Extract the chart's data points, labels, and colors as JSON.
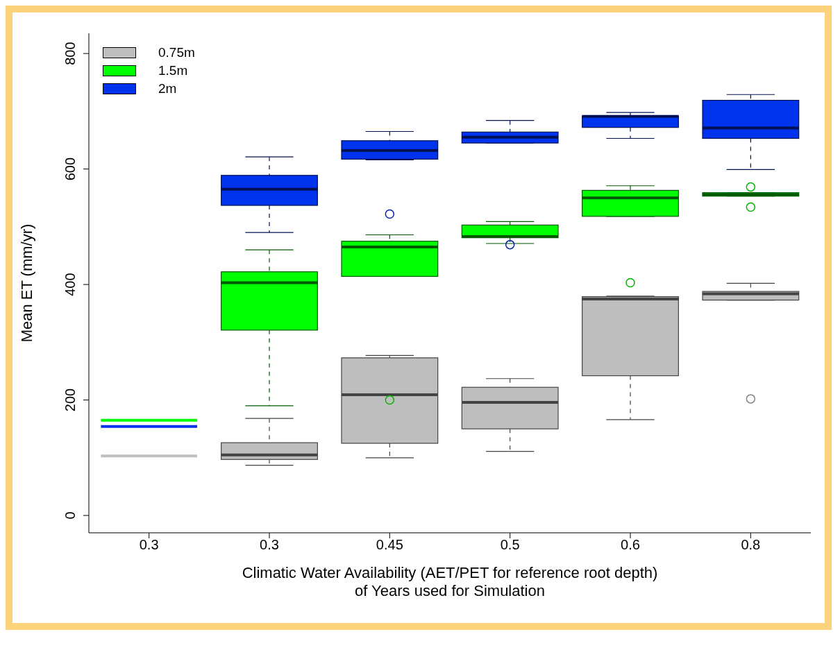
{
  "chart_data": {
    "type": "box",
    "xlabel": "Climatic Water Availability (AET/PET for reference root depth)\nof Years used for Simulation",
    "ylabel": "Mean ET (mm/yr)",
    "categories": [
      "0.3",
      "0.3",
      "0.45",
      "0.5",
      "0.6",
      "0.8"
    ],
    "ylim": [
      -30,
      835
    ],
    "yticks": [
      0,
      200,
      400,
      600,
      800
    ],
    "legend": "top left",
    "series": [
      {
        "name": "0.75m",
        "color": "#bebebe",
        "boxes": [
          {
            "low": 103,
            "q1": 103,
            "median": 103,
            "q3": 103,
            "high": 103
          },
          {
            "low": 87,
            "q1": 97,
            "median": 105,
            "q3": 126,
            "high": 168
          },
          {
            "low": 100,
            "q1": 125,
            "median": 209,
            "q3": 273,
            "high": 277
          },
          {
            "low": 111,
            "q1": 150,
            "median": 196,
            "q3": 222,
            "high": 237
          },
          {
            "low": 166,
            "q1": 242,
            "median": 375,
            "q3": 379,
            "high": 380
          },
          {
            "low": 373,
            "q1": 373,
            "median": 384,
            "q3": 388,
            "high": 402,
            "outliers": [
              202
            ]
          }
        ]
      },
      {
        "name": "1.5m",
        "color": "#00ff00",
        "boxes": [
          {
            "low": 165,
            "q1": 165,
            "median": 165,
            "q3": 165,
            "high": 165
          },
          {
            "low": 190,
            "q1": 321,
            "median": 403,
            "q3": 422,
            "high": 460
          },
          {
            "low": 414,
            "q1": 414,
            "median": 465,
            "q3": 475,
            "high": 486,
            "outliers": [
              200
            ]
          },
          {
            "low": 471,
            "q1": 481,
            "median": 483,
            "q3": 503,
            "high": 509
          },
          {
            "low": 518,
            "q1": 518,
            "median": 550,
            "q3": 563,
            "high": 571,
            "outliers": [
              403
            ]
          },
          {
            "low": 553,
            "q1": 553,
            "median": 556,
            "q3": 559,
            "high": 559,
            "outliers": [
              569,
              534
            ]
          }
        ]
      },
      {
        "name": "2m",
        "color": "#0033ee",
        "boxes": [
          {
            "low": 154,
            "q1": 154,
            "median": 154,
            "q3": 154,
            "high": 154
          },
          {
            "low": 490,
            "q1": 537,
            "median": 565,
            "q3": 589,
            "high": 621
          },
          {
            "low": 616,
            "q1": 617,
            "median": 632,
            "q3": 649,
            "high": 665,
            "outliers": [
              522
            ]
          },
          {
            "low": 645,
            "q1": 645,
            "median": 655,
            "q3": 664,
            "high": 684,
            "outliers": [
              469
            ]
          },
          {
            "low": 653,
            "q1": 672,
            "median": 691,
            "q3": 692,
            "high": 698
          },
          {
            "low": 599,
            "q1": 653,
            "median": 671,
            "q3": 719,
            "high": 729
          }
        ]
      }
    ]
  }
}
